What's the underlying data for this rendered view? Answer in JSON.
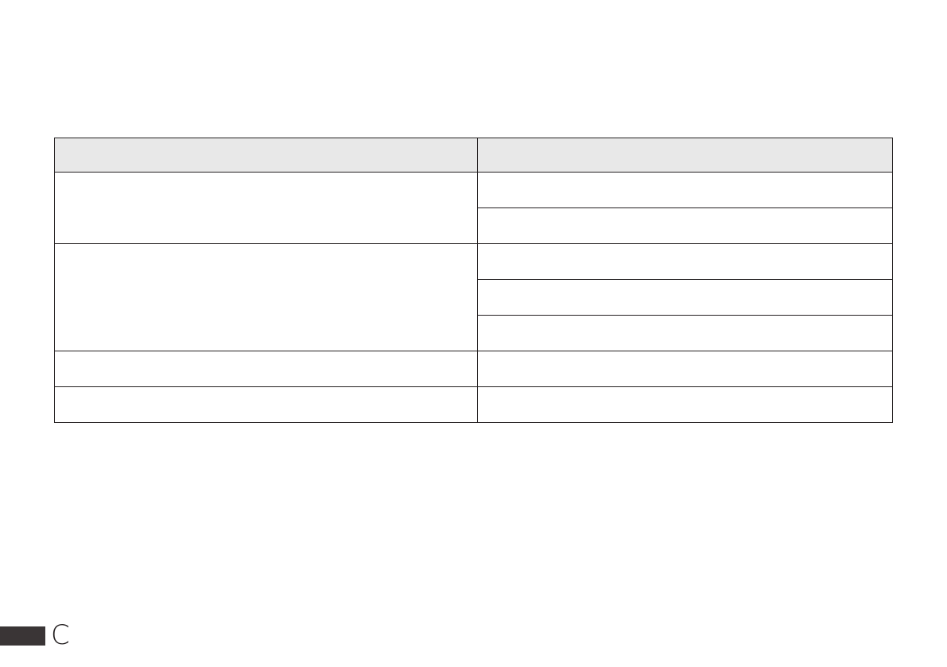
{
  "table": {
    "headers": [
      "",
      ""
    ],
    "rows": [
      [
        "",
        ""
      ],
      [
        "",
        ""
      ],
      [
        "",
        ""
      ],
      [
        "",
        ""
      ],
      [
        "",
        ""
      ],
      [
        "",
        ""
      ],
      [
        "",
        ""
      ]
    ]
  },
  "footer": {
    "section_letter": "C"
  }
}
